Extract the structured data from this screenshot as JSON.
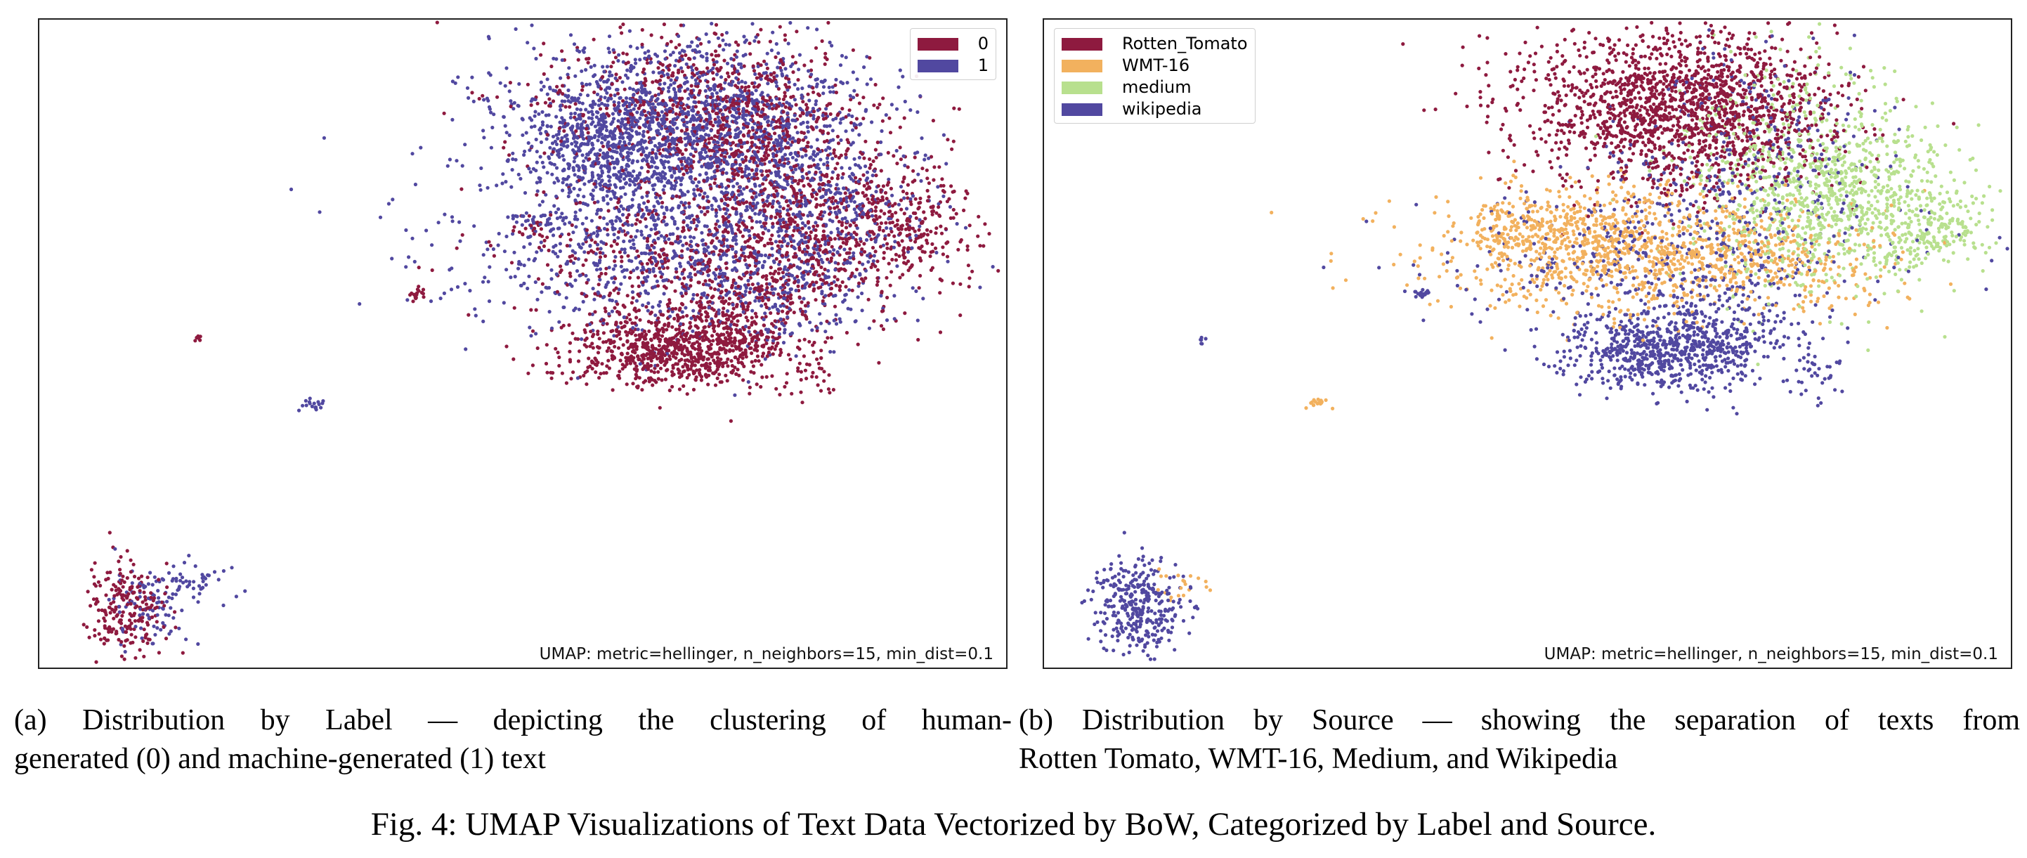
{
  "figure_caption": "Fig. 4: UMAP Visualizations of Text Data Vectorized by BoW, Categorized by Label and Source.",
  "colors": {
    "label_0": "#8e1a3f",
    "label_1": "#5148a0",
    "rotten_tomato": "#8e1a3f",
    "wmt16": "#f2b15e",
    "medium": "#b8e08e",
    "wikipedia": "#5148a0"
  },
  "panels": {
    "a": {
      "caption_line1": "(a) Distribution by Label — depicting the clustering of human-",
      "caption_line2": "generated (0) and machine-generated (1) text",
      "note": "UMAP: metric=hellinger, n_neighbors=15, min_dist=0.1",
      "legend": [
        "0",
        "1"
      ]
    },
    "b": {
      "caption_line1": "(b) Distribution by Source — showing the separation of texts from",
      "caption_line2": "Rotten Tomato, WMT-16, Medium, and Wikipedia",
      "note": "UMAP: metric=hellinger, n_neighbors=15, min_dist=0.1",
      "legend": [
        "Rotten_Tomato",
        "WMT-16",
        "medium",
        "wikipedia"
      ]
    }
  },
  "chart_data": [
    {
      "type": "scatter",
      "title": "",
      "xlabel": "",
      "ylabel": "",
      "axes_ticks": "none",
      "legend_position": "top-right",
      "series": [
        {
          "name": "0",
          "color": "#8e1a3f",
          "approx_points": 5000
        },
        {
          "name": "1",
          "color": "#5148a0",
          "approx_points": 5000
        }
      ],
      "clusters": [
        {
          "label": "main cluster",
          "dominant": "mixed 0 and 1"
        },
        {
          "label": "lower-left cluster",
          "dominant": "0"
        },
        {
          "label": "isolated small groups",
          "dominant": "mixed"
        }
      ]
    },
    {
      "type": "scatter",
      "title": "",
      "xlabel": "",
      "ylabel": "",
      "axes_ticks": "none",
      "legend_position": "top-left",
      "series": [
        {
          "name": "Rotten_Tomato",
          "color": "#8e1a3f",
          "approx_points": 2500
        },
        {
          "name": "WMT-16",
          "color": "#f2b15e",
          "approx_points": 2500
        },
        {
          "name": "medium",
          "color": "#b8e08e",
          "approx_points": 2500
        },
        {
          "name": "wikipedia",
          "color": "#5148a0",
          "approx_points": 2500
        }
      ],
      "clusters": [
        {
          "label": "top of main cluster",
          "dominant": "Rotten_Tomato"
        },
        {
          "label": "middle-left of main cluster",
          "dominant": "WMT-16"
        },
        {
          "label": "right of main cluster",
          "dominant": "medium"
        },
        {
          "label": "bottom of main cluster",
          "dominant": "wikipedia"
        },
        {
          "label": "lower-left cluster",
          "dominant": "wikipedia"
        }
      ]
    }
  ]
}
